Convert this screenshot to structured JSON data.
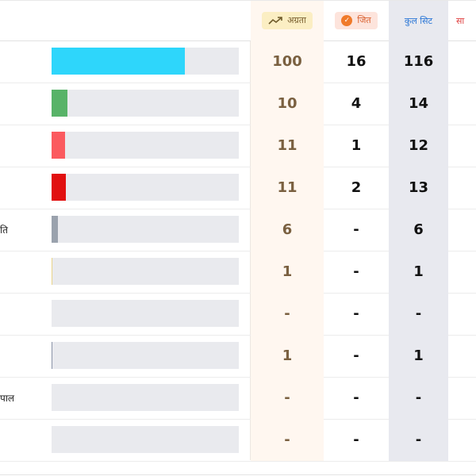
{
  "header": {
    "leading_label": "अग्रता",
    "won_label": "जित",
    "total_label": "कुल सिट",
    "extra_label": "सा",
    "leading_icon": "trending-up-icon",
    "won_icon": "check-circle-icon"
  },
  "rows": [
    {
      "name": "",
      "bar_fraction": 0.71,
      "bar_color": "#2ed6fb",
      "leading": "100",
      "won": "16",
      "total": "116"
    },
    {
      "name": "",
      "bar_fraction": 0.085,
      "bar_color": "#58b368",
      "leading": "10",
      "won": "4",
      "total": "14"
    },
    {
      "name": "",
      "bar_fraction": 0.072,
      "bar_color": "#fb5a5f",
      "leading": "11",
      "won": "1",
      "total": "12"
    },
    {
      "name": "",
      "bar_fraction": 0.078,
      "bar_color": "#e11010",
      "leading": "11",
      "won": "2",
      "total": "13"
    },
    {
      "name": "ति",
      "bar_fraction": 0.034,
      "bar_color": "#9aa2ad",
      "leading": "6",
      "won": "-",
      "total": "6"
    },
    {
      "name": "",
      "bar_fraction": 0.006,
      "bar_color": "#e9d48a",
      "leading": "1",
      "won": "-",
      "total": "1"
    },
    {
      "name": "",
      "bar_fraction": 0.0,
      "bar_color": "#9aa2ad",
      "leading": "-",
      "won": "-",
      "total": "-"
    },
    {
      "name": "",
      "bar_fraction": 0.006,
      "bar_color": "#8a93a8",
      "leading": "1",
      "won": "-",
      "total": "1"
    },
    {
      "name": "पाल",
      "bar_fraction": 0.0,
      "bar_color": "#9aa2ad",
      "leading": "-",
      "won": "-",
      "total": "-"
    },
    {
      "name": "",
      "bar_fraction": 0.0,
      "bar_color": "#9aa2ad",
      "leading": "-",
      "won": "-",
      "total": "-"
    }
  ]
}
